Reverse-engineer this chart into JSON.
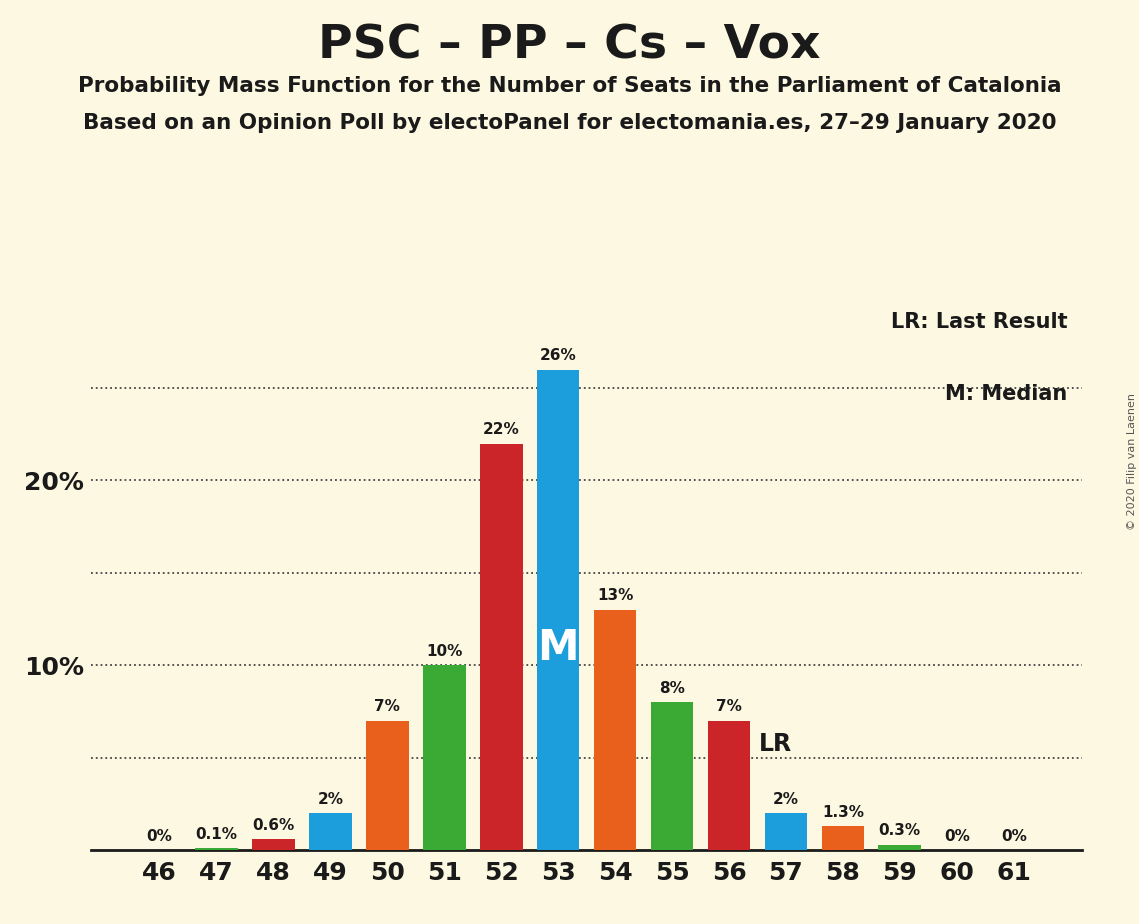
{
  "title": "PSC – PP – Cs – Vox",
  "subtitle1": "Probability Mass Function for the Number of Seats in the Parliament of Catalonia",
  "subtitle2": "Based on an Opinion Poll by electoPanel for electomania.es, 27–29 January 2020",
  "copyright": "© 2020 Filip van Laenen",
  "seats": [
    46,
    47,
    48,
    49,
    50,
    51,
    52,
    53,
    54,
    55,
    56,
    57,
    58,
    59,
    60,
    61
  ],
  "values": [
    0.0,
    0.1,
    0.6,
    2.0,
    7.0,
    10.0,
    22.0,
    26.0,
    13.0,
    8.0,
    7.0,
    2.0,
    1.3,
    0.3,
    0.0,
    0.0
  ],
  "labels": [
    "0%",
    "0.1%",
    "0.6%",
    "2%",
    "7%",
    "10%",
    "22%",
    "26%",
    "13%",
    "8%",
    "7%",
    "2%",
    "1.3%",
    "0.3%",
    "0%",
    "0%"
  ],
  "colors": [
    "#3aaa35",
    "#3aaa35",
    "#cc2529",
    "#1d9edc",
    "#e8601c",
    "#3aaa35",
    "#cc2529",
    "#1d9edc",
    "#e8601c",
    "#3aaa35",
    "#cc2529",
    "#1d9edc",
    "#e8601c",
    "#3aaa35",
    "#3aaa35",
    "#3aaa35"
  ],
  "median_seat": 53,
  "lr_seat": 56,
  "background_color": "#fdf8e1",
  "grid_levels": [
    5,
    10,
    15,
    20,
    25
  ],
  "ylim": [
    0,
    30
  ]
}
